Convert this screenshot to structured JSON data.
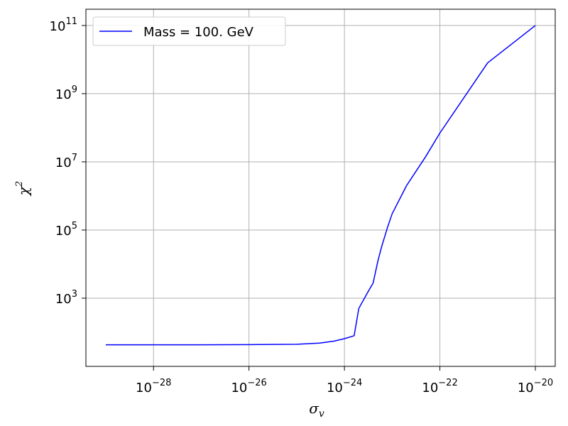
{
  "chart_data": {
    "type": "line",
    "title": "",
    "xlabel": "σ",
    "xlabel_sub": "v",
    "ylabel": "χ",
    "ylabel_sup": "2",
    "xscale": "log",
    "yscale": "log",
    "xlim": [
      1e-29,
      1e-20
    ],
    "ylim": [
      10,
      300000000000.0
    ],
    "grid": true,
    "legend_position": "top-left",
    "xticks": [
      {
        "base": "10",
        "exp": "−28",
        "value": 1e-28
      },
      {
        "base": "10",
        "exp": "−26",
        "value": 1e-26
      },
      {
        "base": "10",
        "exp": "−24",
        "value": 1e-24
      },
      {
        "base": "10",
        "exp": "−22",
        "value": 1e-22
      },
      {
        "base": "10",
        "exp": "−20",
        "value": 1e-20
      }
    ],
    "yticks": [
      {
        "base": "10",
        "exp": "3",
        "value": 1000.0
      },
      {
        "base": "10",
        "exp": "5",
        "value": 100000.0
      },
      {
        "base": "10",
        "exp": "7",
        "value": 10000000.0
      },
      {
        "base": "10",
        "exp": "9",
        "value": 1000000000.0
      },
      {
        "base": "10",
        "exp": "11",
        "value": 100000000000.0
      }
    ],
    "series": [
      {
        "name": "Mass = 100. GeV",
        "color": "#0000ff",
        "x": [
          1e-29,
          1e-27,
          1e-26,
          1e-25,
          3e-25,
          6e-25,
          1e-24,
          1.5e-24,
          1.6e-24,
          2e-24,
          3e-24,
          4e-24,
          5e-24,
          6e-24,
          8e-24,
          1e-23,
          2e-23,
          5e-23,
          1e-22,
          1e-21,
          1e-20
        ],
        "y": [
          43,
          43,
          43.5,
          44.5,
          48,
          55,
          65,
          77,
          80,
          500,
          1400,
          2800,
          12000,
          32000,
          120000,
          300000,
          2000000,
          14000000,
          70000000,
          8000000000,
          100000000000.0
        ]
      }
    ]
  }
}
